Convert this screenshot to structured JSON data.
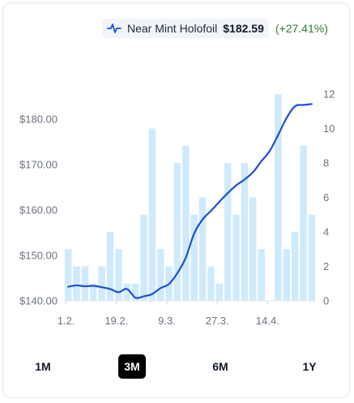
{
  "legend": {
    "icon": "line-chart-icon",
    "label": "Near Mint Holofoil",
    "price": "$182.59",
    "change": "(+27.41%)",
    "line_color": "#1d4ed8",
    "bar_color": "#cfeafc",
    "change_color": "#2e7d32"
  },
  "chart_data": {
    "type": "bar+line",
    "price_axis": {
      "side": "left",
      "ticks": [
        "$140.00",
        "$150.00",
        "$160.00",
        "$170.00",
        "$180.00"
      ],
      "range": [
        140,
        185.5
      ]
    },
    "count_axis": {
      "side": "right",
      "ticks": [
        "0",
        "2",
        "4",
        "6",
        "8",
        "10",
        "12"
      ],
      "range": [
        0,
        12
      ]
    },
    "x_tick_labels": [
      "1.2.",
      "19.2.",
      "9.3.",
      "27.3.",
      "14.4."
    ],
    "bars": [
      3,
      2,
      2,
      1,
      2,
      4,
      3,
      1,
      1,
      5,
      10,
      3,
      2,
      8,
      9,
      5,
      6,
      2,
      1,
      8,
      5,
      8,
      6,
      3,
      0,
      12,
      3,
      4,
      9,
      5
    ],
    "price": [
      143.1,
      143.4,
      143.2,
      143.3,
      143.0,
      142.6,
      141.9,
      142.6,
      140.7,
      141.0,
      141.5,
      142.8,
      143.7,
      146.1,
      149.5,
      154.8,
      157.9,
      159.8,
      161.8,
      163.7,
      165.4,
      166.7,
      168.3,
      170.7,
      173.0,
      176.5,
      180.2,
      182.8,
      183.1,
      183.3
    ]
  },
  "ranges": {
    "items": [
      {
        "key": "1m",
        "label": "1M"
      },
      {
        "key": "3m",
        "label": "3M"
      },
      {
        "key": "6m",
        "label": "6M"
      },
      {
        "key": "1y",
        "label": "1Y"
      }
    ],
    "selected": "3M"
  }
}
